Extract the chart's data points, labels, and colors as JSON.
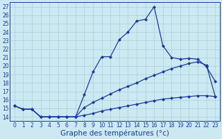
{
  "xlabel": "Graphe des températures (°c)",
  "x": [
    0,
    1,
    2,
    3,
    4,
    5,
    6,
    7,
    8,
    9,
    10,
    11,
    12,
    13,
    14,
    15,
    16,
    17,
    18,
    19,
    20,
    21,
    22,
    23
  ],
  "line1": [
    15.3,
    14.9,
    14.9,
    14.0,
    14.0,
    14.0,
    14.0,
    14.0,
    16.6,
    19.3,
    21.1,
    21.1,
    23.1,
    24.0,
    25.3,
    25.5,
    27.0,
    22.4,
    21.0,
    20.8,
    20.9,
    20.8,
    19.9,
    18.2
  ],
  "line2": [
    15.3,
    14.9,
    14.9,
    14.0,
    14.0,
    14.0,
    14.0,
    14.0,
    15.1,
    15.7,
    16.2,
    16.7,
    17.2,
    17.6,
    18.0,
    18.5,
    18.9,
    19.3,
    19.7,
    20.0,
    20.3,
    20.5,
    20.1,
    16.4
  ],
  "line3": [
    15.3,
    14.9,
    14.9,
    14.0,
    14.0,
    14.0,
    14.0,
    14.0,
    14.2,
    14.4,
    14.7,
    14.9,
    15.1,
    15.3,
    15.5,
    15.7,
    15.9,
    16.1,
    16.2,
    16.3,
    16.4,
    16.5,
    16.5,
    16.4
  ],
  "ylim": [
    13.5,
    27.5
  ],
  "xlim": [
    -0.5,
    23.5
  ],
  "yticks": [
    14,
    15,
    16,
    17,
    18,
    19,
    20,
    21,
    22,
    23,
    24,
    25,
    26,
    27
  ],
  "bg_color": "#cce8f0",
  "line_color": "#1a3a9e",
  "grid_color": "#aacfdc",
  "marker": "D",
  "marker_size": 2.0,
  "linewidth": 0.9,
  "xlabel_fontsize": 7.5,
  "tick_fontsize": 5.5
}
